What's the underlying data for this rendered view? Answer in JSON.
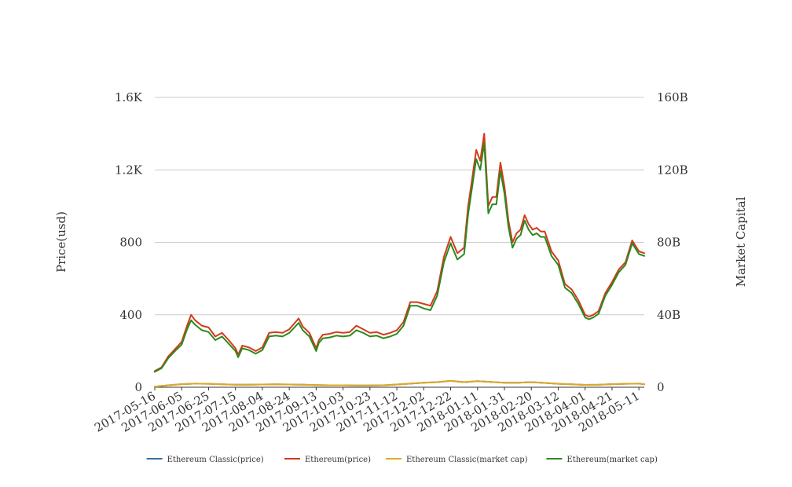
{
  "chart_data": {
    "type": "line",
    "title": "",
    "ylabel_left": "Price(usd)",
    "ylabel_right": "Market Capital",
    "xlabel": "",
    "ylim_left": [
      0,
      1600
    ],
    "ylim_right": [
      0,
      160
    ],
    "y_ticks_left": [
      "0",
      "400",
      "800",
      "1.2K",
      "1.6K"
    ],
    "y_ticks_right": [
      "0",
      "40B",
      "80B",
      "120B",
      "160B"
    ],
    "x_tick_labels": [
      "2017-05-16",
      "2017-06-05",
      "2017-06-25",
      "2017-07-15",
      "2017-08-04",
      "2017-08-24",
      "2017-09-13",
      "2017-10-03",
      "2017-10-23",
      "2017-11-12",
      "2017-12-02",
      "2017-12-22",
      "2018-01-11",
      "2018-01-31",
      "2018-02-20",
      "2018-03-12",
      "2018-04-01",
      "2018-04-21",
      "2018-05-11"
    ],
    "grid": true,
    "legend_position": "bottom",
    "series": [
      {
        "name": "Ethereum Classic(price)",
        "axis": "left",
        "color": "#3a6ea5",
        "x": [
          "2017-05-16",
          "2017-05-26",
          "2017-06-05",
          "2017-06-15",
          "2017-06-25",
          "2017-07-05",
          "2017-07-15",
          "2017-07-25",
          "2017-08-04",
          "2017-08-14",
          "2017-08-24",
          "2017-09-03",
          "2017-09-13",
          "2017-09-23",
          "2017-10-03",
          "2017-10-13",
          "2017-10-23",
          "2017-11-02",
          "2017-11-12",
          "2017-11-22",
          "2017-12-02",
          "2017-12-12",
          "2017-12-22",
          "2018-01-01",
          "2018-01-11",
          "2018-01-21",
          "2018-01-31",
          "2018-02-10",
          "2018-02-20",
          "2018-03-02",
          "2018-03-12",
          "2018-03-22",
          "2018-04-01",
          "2018-04-11",
          "2018-04-21",
          "2018-05-01",
          "2018-05-11",
          "2018-05-15"
        ],
        "values": [
          3,
          11,
          17,
          20,
          19,
          16,
          14,
          14,
          15,
          16,
          15,
          14,
          12,
          11,
          11,
          10,
          10,
          11,
          15,
          20,
          25,
          28,
          35,
          28,
          34,
          29,
          25,
          25,
          28,
          24,
          19,
          16,
          13,
          14,
          17,
          19,
          20,
          16
        ]
      },
      {
        "name": "Ethereum(price)",
        "axis": "left",
        "color": "#d43a1a",
        "x": [
          "2017-05-16",
          "2017-05-21",
          "2017-05-26",
          "2017-05-31",
          "2017-06-05",
          "2017-06-09",
          "2017-06-12",
          "2017-06-15",
          "2017-06-20",
          "2017-06-25",
          "2017-06-30",
          "2017-07-05",
          "2017-07-10",
          "2017-07-15",
          "2017-07-17",
          "2017-07-20",
          "2017-07-25",
          "2017-07-30",
          "2017-08-04",
          "2017-08-09",
          "2017-08-14",
          "2017-08-19",
          "2017-08-24",
          "2017-08-31",
          "2017-09-03",
          "2017-09-08",
          "2017-09-13",
          "2017-09-15",
          "2017-09-18",
          "2017-09-23",
          "2017-09-28",
          "2017-10-03",
          "2017-10-08",
          "2017-10-13",
          "2017-10-18",
          "2017-10-23",
          "2017-10-28",
          "2017-11-02",
          "2017-11-07",
          "2017-11-12",
          "2017-11-17",
          "2017-11-22",
          "2017-11-27",
          "2017-12-02",
          "2017-12-07",
          "2017-12-12",
          "2017-12-17",
          "2017-12-22",
          "2017-12-27",
          "2018-01-01",
          "2018-01-04",
          "2018-01-07",
          "2018-01-10",
          "2018-01-13",
          "2018-01-16",
          "2018-01-19",
          "2018-01-22",
          "2018-01-25",
          "2018-01-28",
          "2018-01-31",
          "2018-02-03",
          "2018-02-06",
          "2018-02-09",
          "2018-02-12",
          "2018-02-15",
          "2018-02-18",
          "2018-02-21",
          "2018-02-24",
          "2018-02-27",
          "2018-03-02",
          "2018-03-07",
          "2018-03-12",
          "2018-03-17",
          "2018-03-22",
          "2018-03-27",
          "2018-04-01",
          "2018-04-04",
          "2018-04-07",
          "2018-04-11",
          "2018-04-16",
          "2018-04-21",
          "2018-04-26",
          "2018-05-01",
          "2018-05-06",
          "2018-05-11",
          "2018-05-15"
        ],
        "values": [
          90,
          110,
          170,
          210,
          250,
          340,
          400,
          370,
          340,
          330,
          280,
          300,
          260,
          215,
          180,
          230,
          220,
          200,
          220,
          300,
          305,
          300,
          320,
          380,
          335,
          300,
          215,
          260,
          290,
          295,
          305,
          300,
          305,
          340,
          320,
          300,
          305,
          290,
          300,
          315,
          360,
          470,
          470,
          460,
          450,
          530,
          720,
          830,
          740,
          770,
          1000,
          1150,
          1310,
          1250,
          1400,
          1000,
          1050,
          1050,
          1240,
          1110,
          920,
          800,
          850,
          870,
          950,
          900,
          870,
          880,
          860,
          860,
          750,
          700,
          570,
          540,
          480,
          400,
          390,
          400,
          420,
          520,
          580,
          650,
          690,
          810,
          750,
          740
        ]
      },
      {
        "name": "Ethereum Classic(market cap)",
        "axis": "right",
        "color": "#e0a820",
        "x": [
          "2017-05-16",
          "2017-05-26",
          "2017-06-05",
          "2017-06-15",
          "2017-06-25",
          "2017-07-05",
          "2017-07-15",
          "2017-07-25",
          "2017-08-04",
          "2017-08-14",
          "2017-08-24",
          "2017-09-03",
          "2017-09-13",
          "2017-09-23",
          "2017-10-03",
          "2017-10-13",
          "2017-10-23",
          "2017-11-02",
          "2017-11-12",
          "2017-11-22",
          "2017-12-02",
          "2017-12-12",
          "2017-12-22",
          "2018-01-01",
          "2018-01-11",
          "2018-01-21",
          "2018-01-31",
          "2018-02-10",
          "2018-02-20",
          "2018-03-02",
          "2018-03-12",
          "2018-03-22",
          "2018-04-01",
          "2018-04-11",
          "2018-04-21",
          "2018-05-01",
          "2018-05-11",
          "2018-05-15"
        ],
        "values": [
          0.3,
          1.1,
          1.7,
          2.0,
          1.9,
          1.6,
          1.4,
          1.4,
          1.5,
          1.6,
          1.5,
          1.4,
          1.2,
          1.1,
          1.1,
          1.0,
          1.0,
          1.1,
          1.5,
          2.0,
          2.5,
          2.8,
          3.5,
          2.8,
          3.4,
          2.9,
          2.5,
          2.5,
          2.8,
          2.4,
          1.9,
          1.6,
          1.3,
          1.4,
          1.7,
          1.9,
          2.0,
          1.6
        ]
      },
      {
        "name": "Ethereum(market cap)",
        "axis": "right",
        "color": "#2a8a1e",
        "x": [
          "2017-05-16",
          "2017-05-21",
          "2017-05-26",
          "2017-05-31",
          "2017-06-05",
          "2017-06-09",
          "2017-06-12",
          "2017-06-15",
          "2017-06-20",
          "2017-06-25",
          "2017-06-30",
          "2017-07-05",
          "2017-07-10",
          "2017-07-15",
          "2017-07-17",
          "2017-07-20",
          "2017-07-25",
          "2017-07-30",
          "2017-08-04",
          "2017-08-09",
          "2017-08-14",
          "2017-08-19",
          "2017-08-24",
          "2017-08-31",
          "2017-09-03",
          "2017-09-08",
          "2017-09-13",
          "2017-09-15",
          "2017-09-18",
          "2017-09-23",
          "2017-09-28",
          "2017-10-03",
          "2017-10-08",
          "2017-10-13",
          "2017-10-18",
          "2017-10-23",
          "2017-10-28",
          "2017-11-02",
          "2017-11-07",
          "2017-11-12",
          "2017-11-17",
          "2017-11-22",
          "2017-11-27",
          "2017-12-02",
          "2017-12-07",
          "2017-12-12",
          "2017-12-17",
          "2017-12-22",
          "2017-12-27",
          "2018-01-01",
          "2018-01-04",
          "2018-01-07",
          "2018-01-10",
          "2018-01-13",
          "2018-01-16",
          "2018-01-19",
          "2018-01-22",
          "2018-01-25",
          "2018-01-28",
          "2018-01-31",
          "2018-02-03",
          "2018-02-06",
          "2018-02-09",
          "2018-02-12",
          "2018-02-15",
          "2018-02-18",
          "2018-02-21",
          "2018-02-24",
          "2018-02-27",
          "2018-03-02",
          "2018-03-07",
          "2018-03-12",
          "2018-03-17",
          "2018-03-22",
          "2018-03-27",
          "2018-04-01",
          "2018-04-04",
          "2018-04-07",
          "2018-04-11",
          "2018-04-16",
          "2018-04-21",
          "2018-04-26",
          "2018-05-01",
          "2018-05-06",
          "2018-05-11",
          "2018-05-15"
        ],
        "values": [
          8.5,
          10.5,
          16.0,
          20.0,
          23.5,
          32.0,
          37.0,
          34.5,
          31.5,
          30.5,
          26.0,
          28.0,
          24.0,
          20.0,
          16.5,
          21.5,
          20.5,
          18.5,
          20.5,
          28.0,
          28.5,
          28.0,
          30.0,
          35.5,
          31.5,
          28.0,
          20.0,
          24.5,
          27.0,
          27.5,
          28.5,
          28.0,
          28.5,
          31.5,
          30.0,
          28.0,
          28.5,
          27.0,
          28.0,
          29.5,
          34.0,
          45.0,
          45.0,
          43.5,
          42.5,
          50.5,
          69.0,
          79.5,
          70.5,
          73.5,
          95.5,
          110.5,
          126.0,
          120.0,
          135.0,
          96.0,
          101.0,
          101.0,
          119.5,
          107.0,
          88.5,
          77.0,
          82.0,
          84.0,
          92.0,
          87.0,
          84.0,
          85.0,
          83.0,
          83.0,
          72.5,
          67.5,
          55.0,
          52.0,
          46.0,
          38.5,
          37.5,
          38.5,
          40.5,
          50.5,
          56.5,
          63.5,
          67.5,
          79.5,
          73.5,
          72.5
        ]
      }
    ]
  }
}
